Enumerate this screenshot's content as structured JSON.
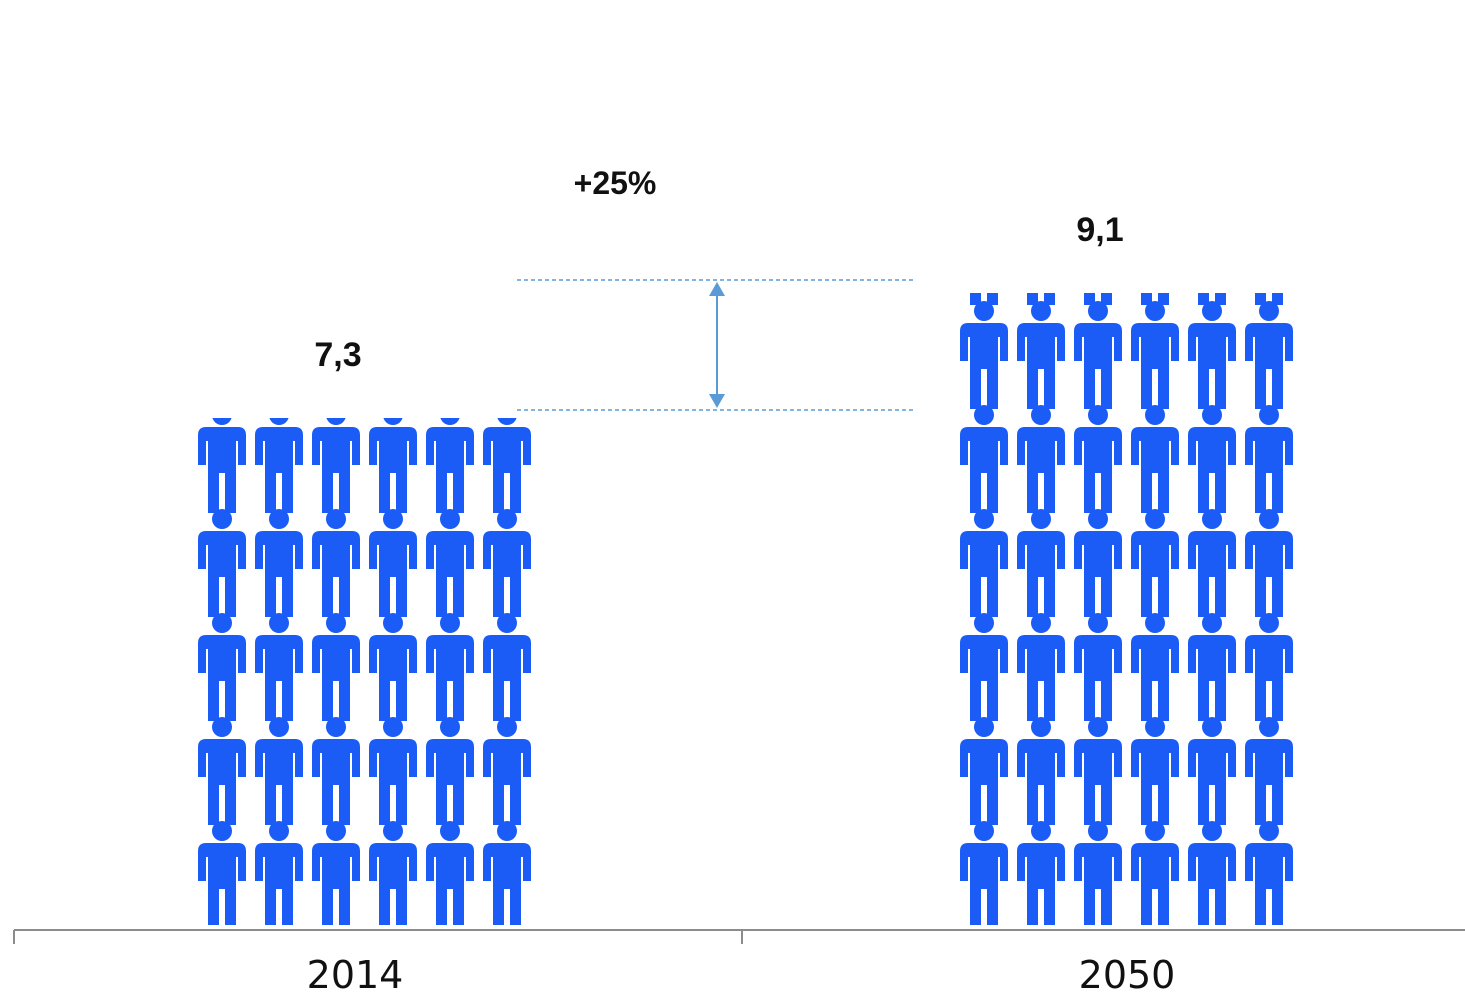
{
  "chart_data": {
    "type": "bar",
    "categories": [
      "2014",
      "2050"
    ],
    "values": [
      7.3,
      9.1
    ],
    "value_labels": [
      "7,3",
      "9,1"
    ],
    "change_label": "+25%",
    "title": "",
    "xlabel": "",
    "ylabel": "",
    "grid": false,
    "icon": "person-icon",
    "colors": {
      "icon": "#1a5cf5",
      "axis": "#8c8c8c",
      "guide": "#5b9bd5"
    }
  }
}
